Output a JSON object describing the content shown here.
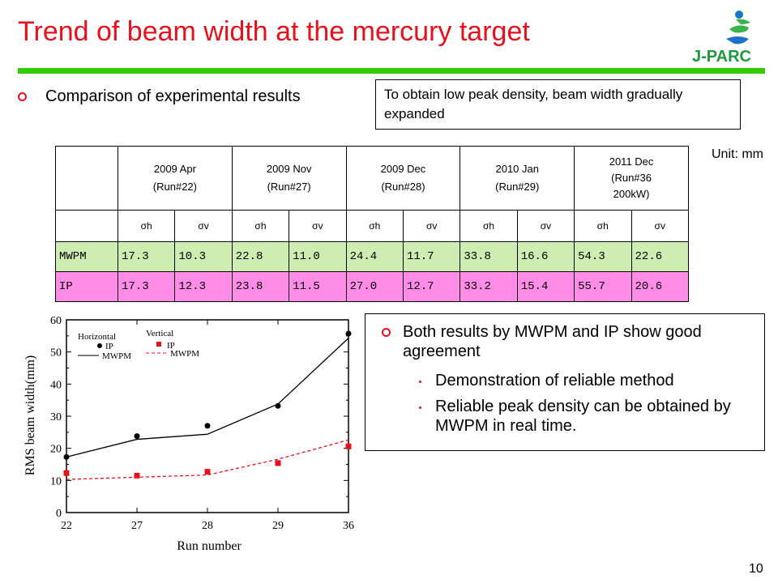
{
  "slide": {
    "title": "Trend of beam width at the mercury target",
    "page_number": "10",
    "logo_text": "J-PARC"
  },
  "comparison_heading": "Comparison of experimental results",
  "note": "To obtain low peak density, beam width gradually expanded",
  "unit": "Unit: mm",
  "table": {
    "columns": [
      {
        "line1": "2009 Apr",
        "line2": "(Run#22)"
      },
      {
        "line1": "2009 Nov",
        "line2": "(Run#27)"
      },
      {
        "line1": "2009 Dec",
        "line2": "(Run#28)"
      },
      {
        "line1": "2010 Jan",
        "line2": "(Run#29)"
      },
      {
        "line1": "2011 Dec",
        "line2": "(Run#36",
        "line3": "200kW)"
      }
    ],
    "sigma_labels": [
      "σh",
      "σv"
    ],
    "rows": [
      {
        "label": "MWPM",
        "values": [
          "17.3",
          "10.3",
          "22.8",
          "11.0",
          "24.4",
          "11.7",
          "33.8",
          "16.6",
          "54.3",
          "22.6"
        ]
      },
      {
        "label": "IP",
        "values": [
          "17.3",
          "12.3",
          "23.8",
          "11.5",
          "27.0",
          "12.7",
          "33.2",
          "15.4",
          "55.7",
          "20.6"
        ]
      }
    ]
  },
  "findings": {
    "main": "Both results by MWPM and IP show good agreement",
    "subs": [
      "Demonstration of reliable method",
      "Reliable peak density can be obtained by MWPM in real time."
    ]
  },
  "colors": {
    "title": "#e8101a",
    "bar": "#33cc00",
    "mwpm_row": "#cdeeb0",
    "ip_row": "#ff8ce6",
    "vertical_series": "#e8101a"
  },
  "chart_data": {
    "type": "line",
    "xlabel": "Run number",
    "ylabel": "RMS beam width(mm)",
    "ylim": [
      0,
      60
    ],
    "yticks": [
      "0",
      "10",
      "20",
      "30",
      "40",
      "50",
      "60"
    ],
    "categories": [
      "22",
      "27",
      "28",
      "29",
      "36"
    ],
    "legend": {
      "horizontal_title": "Horizontal",
      "vertical_title": "Vertical",
      "ip": "IP",
      "mwpm": "MWPM"
    },
    "series": [
      {
        "name": "Horizontal IP",
        "style": "points-circle-black",
        "values": [
          17.3,
          23.8,
          27.0,
          33.2,
          55.7
        ]
      },
      {
        "name": "Horizontal MWPM",
        "style": "line-solid-black",
        "values": [
          17.3,
          22.8,
          24.4,
          33.8,
          54.3
        ]
      },
      {
        "name": "Vertical IP",
        "style": "points-square-red",
        "values": [
          12.3,
          11.5,
          12.7,
          15.4,
          20.6
        ]
      },
      {
        "name": "Vertical MWPM",
        "style": "line-dashed-red",
        "values": [
          10.3,
          11.0,
          11.7,
          16.6,
          22.6
        ]
      }
    ]
  }
}
